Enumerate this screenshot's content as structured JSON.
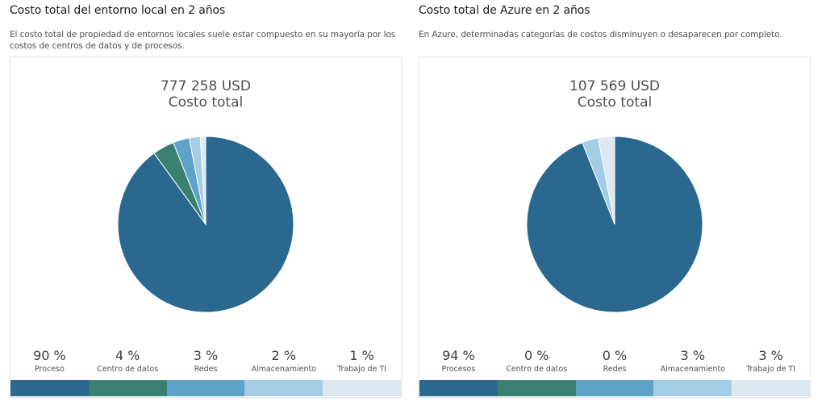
{
  "panels": [
    {
      "title": "Costo total del entorno local en 2 años",
      "description": "El costo total de propiedad de entornos locales suele estar compuesto en su mayoría por los costos de centros de datos y de procesos.",
      "total": "777 258 USD",
      "total_label": "Costo total",
      "legend": [
        {
          "pct": "90 %",
          "name": "Proceso"
        },
        {
          "pct": "4 %",
          "name": "Centro de datos"
        },
        {
          "pct": "3 %",
          "name": "Redes"
        },
        {
          "pct": "2 %",
          "name": "Almacenamiento"
        },
        {
          "pct": "1 %",
          "name": "Trabajo de TI"
        }
      ]
    },
    {
      "title": "Costo total de Azure en 2 años",
      "description": "En Azure, determinadas categorías de costos disminuyen o desaparecen por completo.",
      "total": "107 569 USD",
      "total_label": "Costo total",
      "legend": [
        {
          "pct": "94 %",
          "name": "Procesos"
        },
        {
          "pct": "0 %",
          "name": "Centro de datos"
        },
        {
          "pct": "0 %",
          "name": "Redes"
        },
        {
          "pct": "3 %",
          "name": "Almacenamiento"
        },
        {
          "pct": "3 %",
          "name": "Trabajo de TI"
        }
      ]
    }
  ],
  "colors": [
    "#2a6890",
    "#3a8070",
    "#5da3c8",
    "#a3cde3",
    "#dde9f0"
  ],
  "chart_data": [
    {
      "type": "pie",
      "title": "777 258 USD",
      "categories": [
        "Proceso",
        "Centro de datos",
        "Redes",
        "Almacenamiento",
        "Trabajo de TI"
      ],
      "values": [
        90,
        4,
        3,
        2,
        1
      ]
    },
    {
      "type": "pie",
      "title": "107 569 USD",
      "categories": [
        "Procesos",
        "Centro de datos",
        "Redes",
        "Almacenamiento",
        "Trabajo de TI"
      ],
      "values": [
        94,
        0,
        0,
        3,
        3
      ]
    }
  ]
}
